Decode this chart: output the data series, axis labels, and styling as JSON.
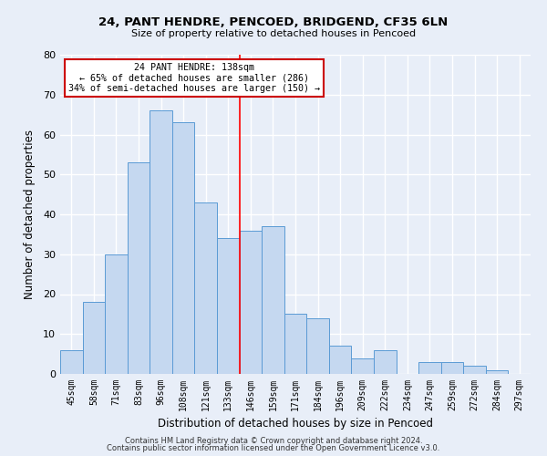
{
  "title1": "24, PANT HENDRE, PENCOED, BRIDGEND, CF35 6LN",
  "title2": "Size of property relative to detached houses in Pencoed",
  "xlabel": "Distribution of detached houses by size in Pencoed",
  "ylabel": "Number of detached properties",
  "categories": [
    "45sqm",
    "58sqm",
    "71sqm",
    "83sqm",
    "96sqm",
    "108sqm",
    "121sqm",
    "133sqm",
    "146sqm",
    "159sqm",
    "171sqm",
    "184sqm",
    "196sqm",
    "209sqm",
    "222sqm",
    "234sqm",
    "247sqm",
    "259sqm",
    "272sqm",
    "284sqm",
    "297sqm"
  ],
  "values": [
    6,
    18,
    30,
    53,
    66,
    63,
    43,
    34,
    36,
    37,
    15,
    14,
    7,
    4,
    6,
    0,
    3,
    3,
    2,
    1,
    0
  ],
  "bar_color": "#c5d8f0",
  "bar_edge_color": "#5b9bd5",
  "ylim": [
    0,
    80
  ],
  "yticks": [
    0,
    10,
    20,
    30,
    40,
    50,
    60,
    70,
    80
  ],
  "property_line_x": 7.5,
  "annotation_text": "24 PANT HENDRE: 138sqm\n← 65% of detached houses are smaller (286)\n34% of semi-detached houses are larger (150) →",
  "footer1": "Contains HM Land Registry data © Crown copyright and database right 2024.",
  "footer2": "Contains public sector information licensed under the Open Government Licence v3.0.",
  "bg_color": "#e8eef8",
  "grid_color": "#ffffff",
  "annotation_box_facecolor": "#ffffff",
  "annotation_box_edge_color": "#cc0000"
}
